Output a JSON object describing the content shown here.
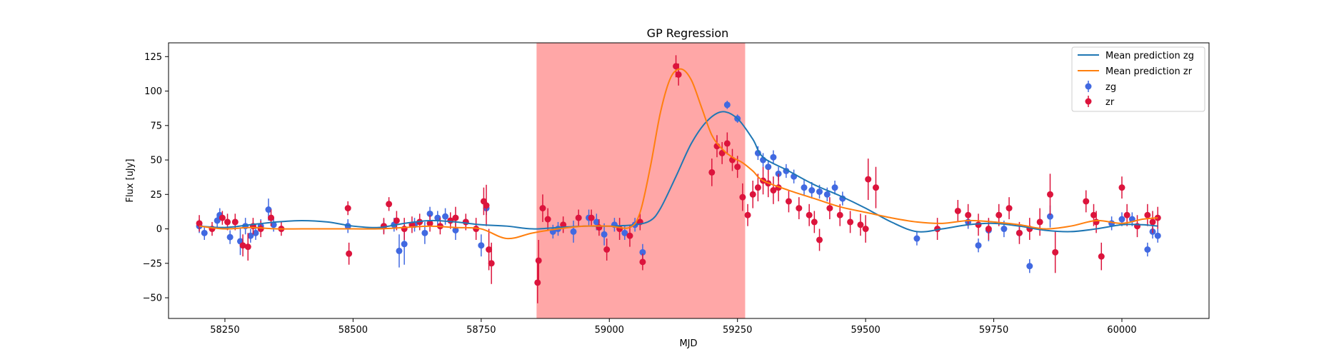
{
  "chart_data": {
    "type": "scatter",
    "title": "GP Regression",
    "xlabel": "MJD",
    "ylabel": "Flux [uJy]",
    "xlim": [
      58140,
      60170
    ],
    "ylim": [
      -65,
      135
    ],
    "xticks": [
      58250,
      58500,
      58750,
      59000,
      59250,
      59500,
      59750,
      60000
    ],
    "yticks": [
      -50,
      -25,
      0,
      25,
      50,
      75,
      100,
      125
    ],
    "grid": false,
    "legend_position": "top-right",
    "shaded_region": {
      "x_start": 58858,
      "x_end": 59265,
      "color": "#ffa7a7"
    },
    "colors": {
      "zg": "#4169e1",
      "zr": "#dc143c",
      "mean_zg": "#1f77b4",
      "mean_zr": "#ff7f0e"
    },
    "lines": [
      {
        "name": "Mean prediction zg",
        "color": "#1f77b4",
        "x": [
          58200,
          58250,
          58300,
          58350,
          58400,
          58450,
          58500,
          58550,
          58600,
          58650,
          58700,
          58750,
          58800,
          58850,
          58900,
          58950,
          59000,
          59050,
          59080,
          59100,
          59130,
          59160,
          59190,
          59220,
          59250,
          59280,
          59300,
          59350,
          59400,
          59450,
          59500,
          59550,
          59600,
          59650,
          59700,
          59750,
          59800,
          59850,
          59900,
          59950,
          60000,
          60040,
          60070
        ],
        "y": [
          2,
          1,
          3,
          5,
          6,
          5,
          2,
          1,
          4,
          6,
          5,
          3,
          2,
          0,
          1,
          2,
          2,
          3,
          6,
          15,
          38,
          62,
          78,
          85,
          80,
          65,
          52,
          42,
          32,
          24,
          15,
          5,
          -2,
          0,
          3,
          4,
          2,
          -1,
          -2,
          0,
          3,
          3,
          2
        ]
      },
      {
        "name": "Mean prediction zr",
        "color": "#ff7f0e",
        "x": [
          58200,
          58250,
          58300,
          58350,
          58400,
          58450,
          58500,
          58550,
          58600,
          58650,
          58700,
          58750,
          58800,
          58850,
          58900,
          58950,
          59000,
          59040,
          59060,
          59080,
          59100,
          59120,
          59140,
          59160,
          59180,
          59200,
          59220,
          59240,
          59260,
          59280,
          59300,
          59350,
          59400,
          59450,
          59500,
          59550,
          59600,
          59650,
          59700,
          59750,
          59800,
          59850,
          59900,
          59950,
          60000,
          60040,
          60070
        ],
        "y": [
          2,
          0,
          1,
          0,
          0,
          0,
          0,
          0,
          1,
          2,
          1,
          0,
          -7,
          -3,
          0,
          2,
          2,
          1,
          12,
          45,
          85,
          110,
          116,
          108,
          88,
          68,
          58,
          52,
          48,
          42,
          35,
          28,
          22,
          16,
          12,
          8,
          5,
          4,
          6,
          5,
          3,
          0,
          2,
          6,
          4,
          7,
          8
        ]
      }
    ],
    "series": [
      {
        "name": "zg",
        "color": "#4169e1",
        "x": [
          58200,
          58210,
          58235,
          58240,
          58260,
          58280,
          58290,
          58300,
          58310,
          58320,
          58335,
          58345,
          58490,
          58560,
          58580,
          58590,
          58600,
          58620,
          58640,
          58650,
          58665,
          58680,
          58700,
          58720,
          58750,
          58760,
          58890,
          58900,
          58930,
          58960,
          58975,
          58990,
          59010,
          59030,
          59050,
          59065,
          59230,
          59250,
          59290,
          59300,
          59310,
          59320,
          59330,
          59345,
          59360,
          59380,
          59395,
          59410,
          59425,
          59440,
          59455,
          59600,
          59700,
          59720,
          59740,
          59770,
          59800,
          59820,
          59860,
          59980,
          60000,
          60020,
          60050,
          60060,
          60070
        ],
        "y": [
          2,
          -3,
          6,
          10,
          -6,
          -9,
          2,
          -5,
          -3,
          2,
          14,
          3,
          2,
          2,
          3,
          -16,
          -11,
          3,
          -3,
          11,
          8,
          9,
          -1,
          5,
          -12,
          15,
          -2,
          0,
          -2,
          8,
          5,
          -4,
          3,
          -3,
          3,
          -17,
          90,
          80,
          55,
          50,
          45,
          52,
          40,
          42,
          38,
          30,
          28,
          27,
          25,
          30,
          22,
          -7,
          5,
          -12,
          -1,
          0,
          -3,
          -27,
          9,
          4,
          7,
          7,
          -15,
          -2,
          -5
        ],
        "err": [
          5,
          5,
          5,
          5,
          5,
          10,
          6,
          5,
          5,
          5,
          8,
          5,
          5,
          5,
          5,
          12,
          15,
          5,
          8,
          5,
          5,
          6,
          7,
          5,
          8,
          5,
          5,
          5,
          8,
          6,
          6,
          8,
          5,
          5,
          5,
          6,
          3,
          3,
          5,
          5,
          5,
          5,
          5,
          5,
          5,
          6,
          6,
          5,
          5,
          5,
          5,
          5,
          5,
          5,
          8,
          6,
          5,
          5,
          8,
          5,
          5,
          5,
          5,
          5,
          5
        ]
      },
      {
        "name": "zr",
        "color": "#dc143c",
        "x": [
          58200,
          58225,
          58245,
          58255,
          58270,
          58285,
          58295,
          58305,
          58320,
          58340,
          58360,
          58490,
          58492,
          58560,
          58570,
          58585,
          58600,
          58615,
          58630,
          58650,
          58670,
          58690,
          58700,
          58720,
          58740,
          58755,
          58760,
          58765,
          58770,
          58860,
          58862,
          58870,
          58880,
          58910,
          58940,
          58965,
          58980,
          58995,
          59020,
          59040,
          59060,
          59065,
          59130,
          59135,
          59200,
          59210,
          59220,
          59230,
          59240,
          59250,
          59260,
          59270,
          59280,
          59290,
          59300,
          59310,
          59320,
          59330,
          59350,
          59370,
          59390,
          59400,
          59410,
          59430,
          59450,
          59470,
          59490,
          59500,
          59505,
          59520,
          59640,
          59680,
          59700,
          59720,
          59740,
          59760,
          59780,
          59800,
          59820,
          59840,
          59860,
          59870,
          59930,
          59945,
          59950,
          59960,
          60000,
          60010,
          60030,
          60050,
          60060,
          60070
        ],
        "y": [
          4,
          0,
          8,
          5,
          5,
          -12,
          -13,
          2,
          0,
          8,
          0,
          15,
          -18,
          2,
          18,
          6,
          0,
          3,
          5,
          4,
          2,
          6,
          8,
          5,
          0,
          20,
          17,
          -15,
          -25,
          -39,
          -23,
          15,
          7,
          3,
          8,
          8,
          1,
          -15,
          0,
          -5,
          5,
          -24,
          118,
          112,
          41,
          60,
          55,
          62,
          50,
          45,
          23,
          10,
          25,
          30,
          35,
          33,
          28,
          30,
          20,
          15,
          10,
          5,
          -8,
          15,
          10,
          5,
          3,
          0,
          36,
          30,
          0,
          13,
          10,
          3,
          0,
          10,
          15,
          -3,
          0,
          5,
          25,
          -17,
          20,
          10,
          5,
          -20,
          30,
          10,
          2,
          10,
          5,
          8
        ],
        "err": [
          6,
          5,
          5,
          6,
          6,
          8,
          10,
          6,
          6,
          6,
          5,
          5,
          8,
          6,
          5,
          7,
          8,
          6,
          6,
          6,
          6,
          6,
          8,
          6,
          8,
          10,
          15,
          15,
          15,
          15,
          15,
          10,
          8,
          6,
          6,
          6,
          6,
          8,
          8,
          8,
          6,
          6,
          8,
          8,
          10,
          8,
          8,
          8,
          8,
          8,
          10,
          8,
          10,
          10,
          10,
          10,
          10,
          10,
          8,
          8,
          8,
          8,
          8,
          8,
          8,
          8,
          8,
          10,
          15,
          15,
          8,
          8,
          8,
          8,
          8,
          8,
          8,
          8,
          8,
          10,
          15,
          15,
          8,
          8,
          8,
          10,
          8,
          8,
          8,
          8,
          8,
          8
        ]
      }
    ]
  }
}
